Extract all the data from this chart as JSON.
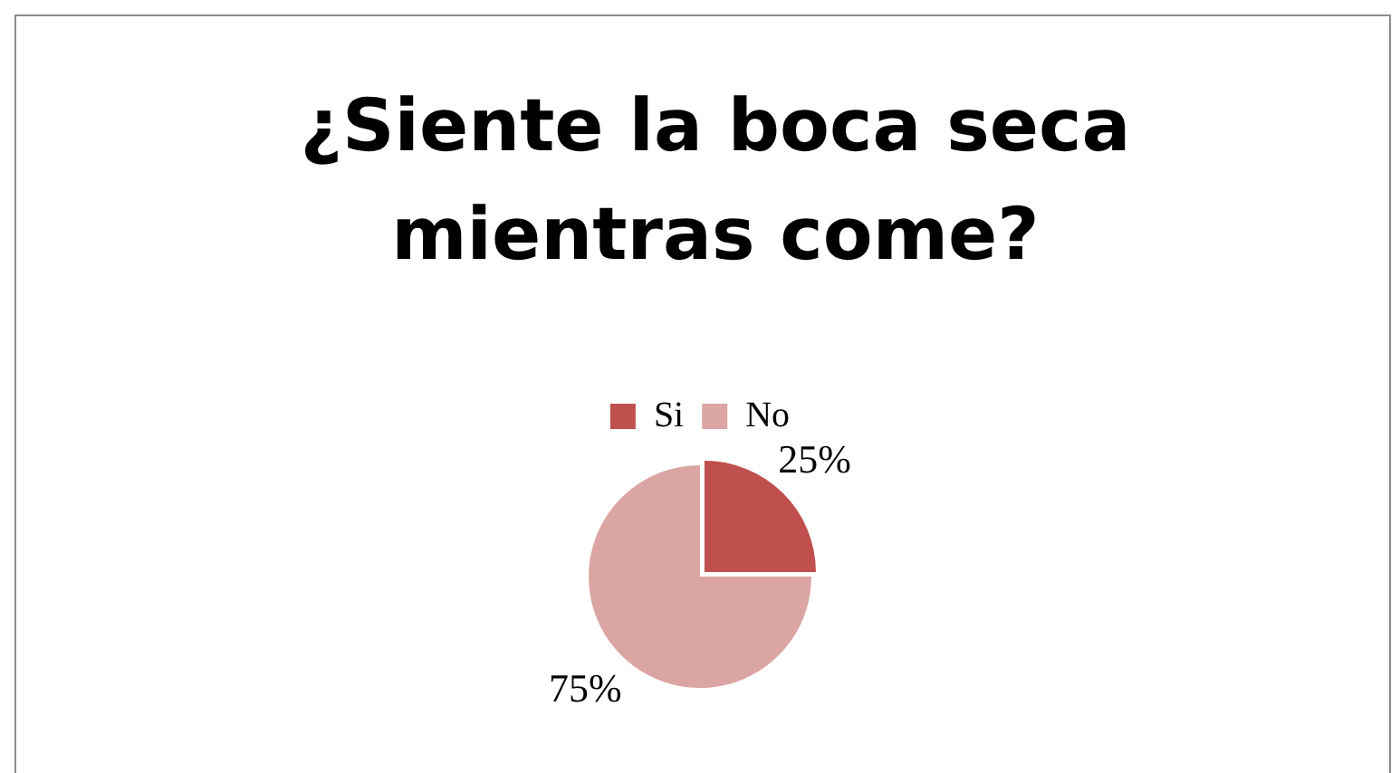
{
  "chart_data": {
    "type": "pie",
    "title": "¿Siente la boca seca mientras come?",
    "categories": [
      "Si",
      "No"
    ],
    "values": [
      25,
      75
    ],
    "value_labels": [
      "25%",
      "75%"
    ],
    "colors": [
      "#c0504d",
      "#dba5a3"
    ],
    "legend": "top"
  }
}
